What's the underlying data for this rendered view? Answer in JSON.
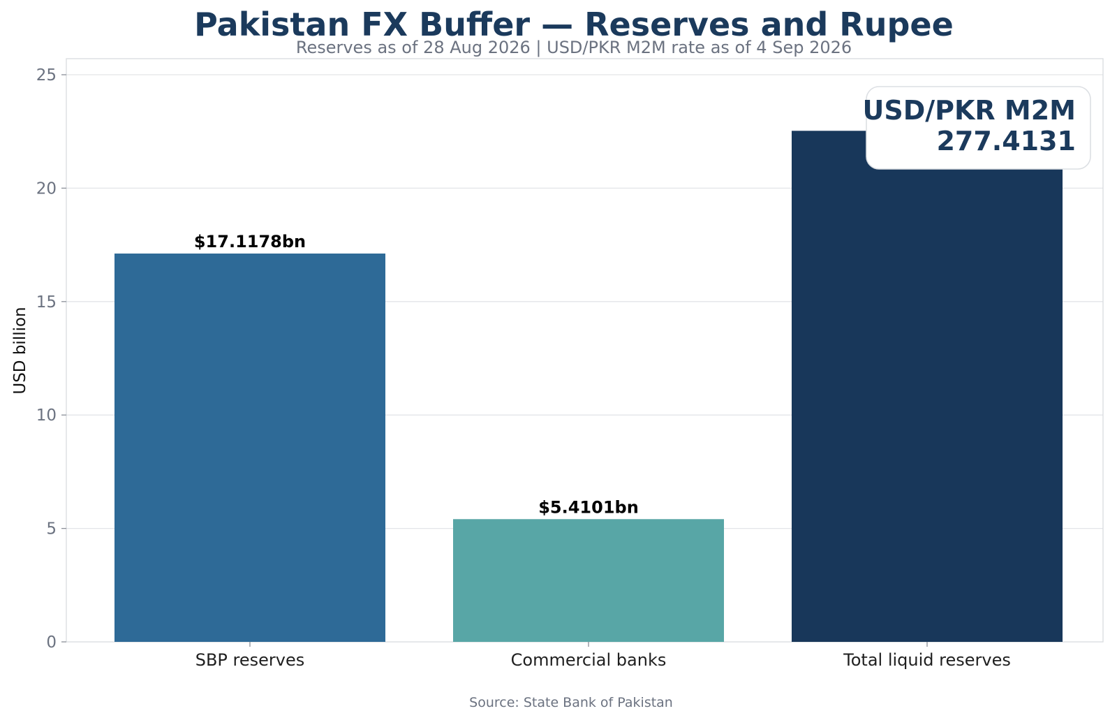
{
  "chart_data": {
    "type": "bar",
    "title": "Pakistan FX Buffer — Reserves and Rupee",
    "subtitle": "Reserves as of 28 Aug 2026 | USD/PKR M2M rate as of 4 Sep 2026",
    "xlabel": "",
    "ylabel": "USD billion",
    "ylim": [
      0,
      25.7
    ],
    "yticks": [
      "0",
      "5",
      "10",
      "15",
      "20",
      "25"
    ],
    "categories": [
      "SBP reserves",
      "Commercial banks",
      "Total liquid reserves"
    ],
    "values": [
      17.1178,
      5.4101,
      22.5279
    ],
    "data_labels": [
      "$17.1178bn",
      "$5.4101bn",
      ""
    ],
    "colors": [
      "#2e6a97",
      "#58a6a6",
      "#18375a"
    ],
    "grid": true,
    "callout": {
      "label": "USD/PKR M2M",
      "value": "277.4131",
      "placement": "top-right"
    },
    "source": "Source: State Bank of Pakistan"
  }
}
